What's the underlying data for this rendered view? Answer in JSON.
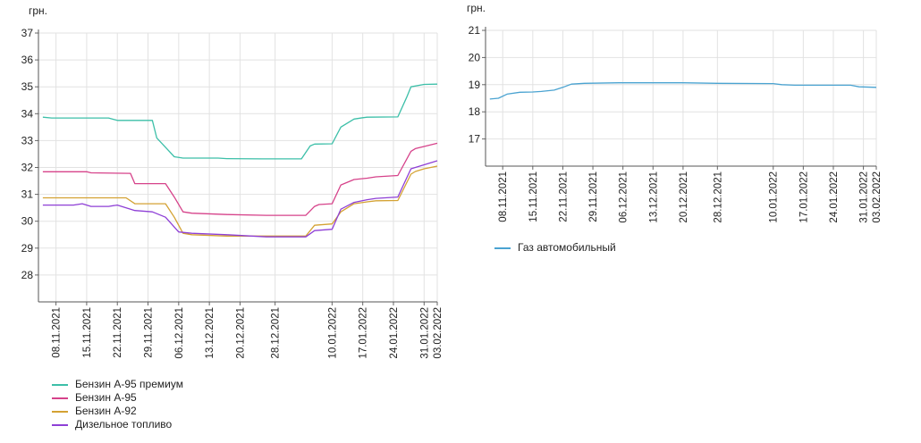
{
  "chart_data": [
    {
      "type": "line",
      "unit_label": "грн.",
      "ylim": [
        27,
        37
      ],
      "yticks": [
        28,
        29,
        30,
        31,
        32,
        33,
        34,
        35,
        36,
        37
      ],
      "xticks": [
        "08.11.2021",
        "15.11.2021",
        "22.11.2021",
        "29.11.2021",
        "06.12.2021",
        "13.12.2021",
        "20.12.2021",
        "28.12.2021",
        "10.01.2022",
        "17.01.2022",
        "24.01.2022",
        "31.01.2022",
        "03.02.2022"
      ],
      "grid": true,
      "legend_position": "bottom-left",
      "series": [
        {
          "name": "Бензин А-95 премиум",
          "color": "#3cbfa8",
          "points": [
            [
              "2021-11-05",
              33.87
            ],
            [
              "2021-11-07",
              33.84
            ],
            [
              "2021-11-20",
              33.84
            ],
            [
              "2021-11-22",
              33.75
            ],
            [
              "2021-11-30",
              33.75
            ],
            [
              "2021-12-01",
              33.1
            ],
            [
              "2021-12-03",
              32.75
            ],
            [
              "2021-12-05",
              32.4
            ],
            [
              "2021-12-07",
              32.35
            ],
            [
              "2021-12-15",
              32.35
            ],
            [
              "2021-12-17",
              32.33
            ],
            [
              "2021-12-25",
              32.32
            ],
            [
              "2022-01-03",
              32.32
            ],
            [
              "2022-01-05",
              32.8
            ],
            [
              "2022-01-06",
              32.87
            ],
            [
              "2022-01-10",
              32.88
            ],
            [
              "2022-01-12",
              33.5
            ],
            [
              "2022-01-15",
              33.8
            ],
            [
              "2022-01-17",
              33.85
            ],
            [
              "2022-01-18",
              33.87
            ],
            [
              "2022-01-25",
              33.88
            ],
            [
              "2022-01-27",
              34.6
            ],
            [
              "2022-01-28",
              35.0
            ],
            [
              "2022-01-31",
              35.09
            ],
            [
              "2022-02-03",
              35.1
            ]
          ]
        },
        {
          "name": "Бензин А-95",
          "color": "#d6428a",
          "points": [
            [
              "2021-11-05",
              31.84
            ],
            [
              "2021-11-15",
              31.84
            ],
            [
              "2021-11-16",
              31.8
            ],
            [
              "2021-11-25",
              31.78
            ],
            [
              "2021-11-26",
              31.4
            ],
            [
              "2021-12-03",
              31.4
            ],
            [
              "2021-12-05",
              30.9
            ],
            [
              "2021-12-07",
              30.35
            ],
            [
              "2021-12-09",
              30.3
            ],
            [
              "2021-12-17",
              30.25
            ],
            [
              "2021-12-26",
              30.22
            ],
            [
              "2022-01-04",
              30.22
            ],
            [
              "2022-01-06",
              30.55
            ],
            [
              "2022-01-07",
              30.62
            ],
            [
              "2022-01-10",
              30.65
            ],
            [
              "2022-01-12",
              31.35
            ],
            [
              "2022-01-15",
              31.55
            ],
            [
              "2022-01-18",
              31.6
            ],
            [
              "2022-01-20",
              31.65
            ],
            [
              "2022-01-25",
              31.7
            ],
            [
              "2022-01-28",
              32.6
            ],
            [
              "2022-01-29",
              32.7
            ],
            [
              "2022-01-31",
              32.78
            ],
            [
              "2022-02-03",
              32.9
            ]
          ]
        },
        {
          "name": "Бензин А-92",
          "color": "#d4a233",
          "points": [
            [
              "2021-11-05",
              30.87
            ],
            [
              "2021-11-24",
              30.87
            ],
            [
              "2021-11-26",
              30.65
            ],
            [
              "2021-12-03",
              30.65
            ],
            [
              "2021-12-05",
              30.15
            ],
            [
              "2021-12-07",
              29.55
            ],
            [
              "2021-12-09",
              29.5
            ],
            [
              "2021-12-17",
              29.45
            ],
            [
              "2021-12-26",
              29.45
            ],
            [
              "2022-01-04",
              29.45
            ],
            [
              "2022-01-06",
              29.85
            ],
            [
              "2022-01-10",
              29.9
            ],
            [
              "2022-01-12",
              30.35
            ],
            [
              "2022-01-15",
              30.65
            ],
            [
              "2022-01-18",
              30.72
            ],
            [
              "2022-01-20",
              30.76
            ],
            [
              "2022-01-25",
              30.77
            ],
            [
              "2022-01-28",
              31.75
            ],
            [
              "2022-01-29",
              31.85
            ],
            [
              "2022-01-31",
              31.95
            ],
            [
              "2022-02-03",
              32.05
            ]
          ]
        },
        {
          "name": "Дизельное топливо",
          "color": "#8e3fd6",
          "points": [
            [
              "2021-11-05",
              30.6
            ],
            [
              "2021-11-07",
              30.6
            ],
            [
              "2021-11-12",
              30.6
            ],
            [
              "2021-11-14",
              30.65
            ],
            [
              "2021-11-16",
              30.55
            ],
            [
              "2021-11-20",
              30.55
            ],
            [
              "2021-11-22",
              30.6
            ],
            [
              "2021-11-26",
              30.4
            ],
            [
              "2021-11-30",
              30.35
            ],
            [
              "2021-12-03",
              30.15
            ],
            [
              "2021-12-06",
              29.6
            ],
            [
              "2021-12-09",
              29.55
            ],
            [
              "2021-12-17",
              29.5
            ],
            [
              "2021-12-26",
              29.42
            ],
            [
              "2022-01-04",
              29.42
            ],
            [
              "2022-01-06",
              29.65
            ],
            [
              "2022-01-10",
              29.7
            ],
            [
              "2022-01-12",
              30.45
            ],
            [
              "2022-01-15",
              30.7
            ],
            [
              "2022-01-18",
              30.8
            ],
            [
              "2022-01-20",
              30.85
            ],
            [
              "2022-01-25",
              30.9
            ],
            [
              "2022-01-27",
              31.6
            ],
            [
              "2022-01-28",
              31.95
            ],
            [
              "2022-01-31",
              32.1
            ],
            [
              "2022-02-02",
              32.2
            ],
            [
              "2022-02-03",
              32.25
            ]
          ]
        }
      ]
    },
    {
      "type": "line",
      "unit_label": "грн.",
      "ylim": [
        16,
        21
      ],
      "yticks": [
        17,
        18,
        19,
        20,
        21
      ],
      "xticks": [
        "08.11.2021",
        "15.11.2021",
        "22.11.2021",
        "29.11.2021",
        "06.12.2021",
        "13.12.2021",
        "20.12.2021",
        "28.12.2021",
        "10.01.2022",
        "17.01.2022",
        "24.01.2022",
        "31.01.2022",
        "03.02.2022"
      ],
      "grid": true,
      "legend_position": "bottom-left",
      "series": [
        {
          "name": "Газ автомобильный",
          "color": "#4aa3d1",
          "points": [
            [
              "2021-11-05",
              18.47
            ],
            [
              "2021-11-07",
              18.5
            ],
            [
              "2021-11-09",
              18.65
            ],
            [
              "2021-11-12",
              18.72
            ],
            [
              "2021-11-15",
              18.73
            ],
            [
              "2021-11-17",
              18.75
            ],
            [
              "2021-11-20",
              18.8
            ],
            [
              "2021-11-22",
              18.9
            ],
            [
              "2021-11-24",
              19.02
            ],
            [
              "2021-11-27",
              19.05
            ],
            [
              "2021-12-05",
              19.07
            ],
            [
              "2021-12-20",
              19.07
            ],
            [
              "2021-12-28",
              19.05
            ],
            [
              "2022-01-10",
              19.04
            ],
            [
              "2022-01-12",
              19.0
            ],
            [
              "2022-01-15",
              18.98
            ],
            [
              "2022-01-28",
              18.98
            ],
            [
              "2022-01-30",
              18.92
            ],
            [
              "2022-02-03",
              18.9
            ]
          ]
        }
      ]
    }
  ]
}
